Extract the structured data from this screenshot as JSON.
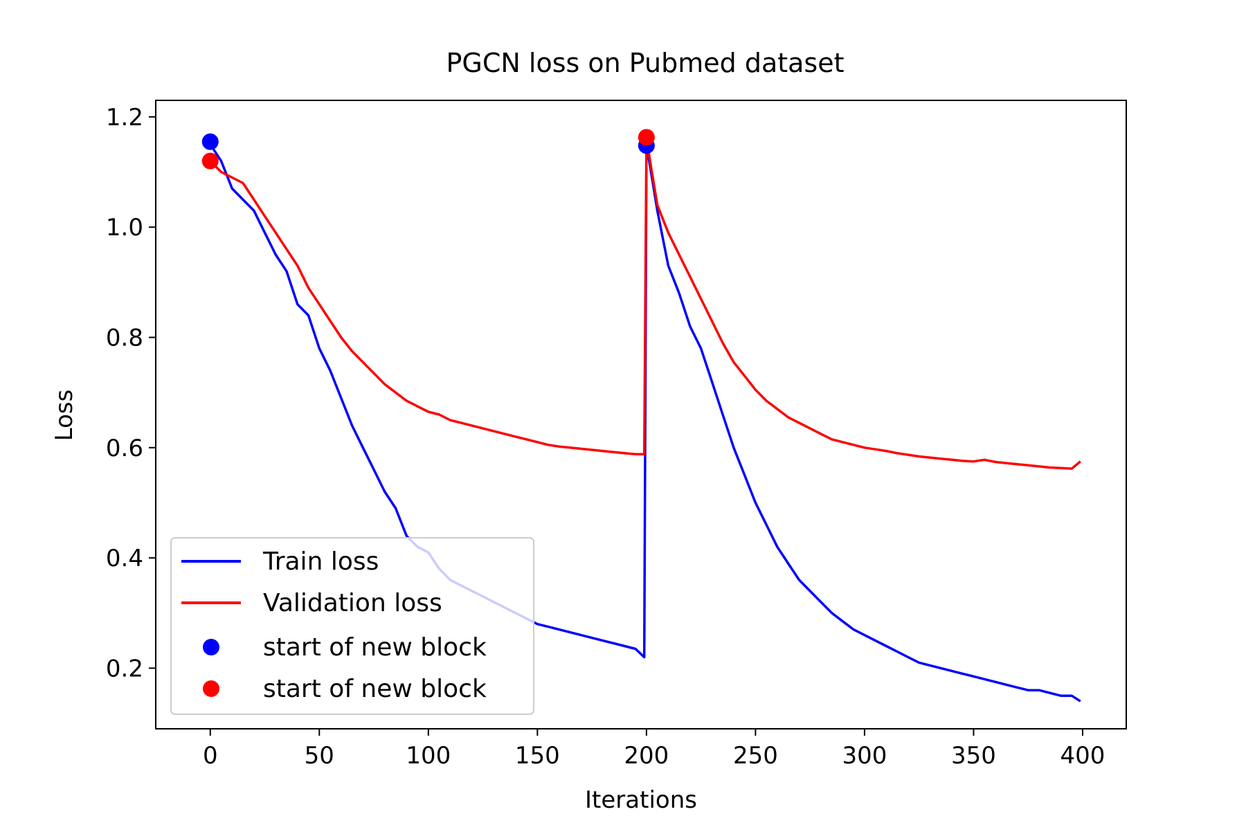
{
  "chart_data": {
    "type": "line",
    "title": "PGCN loss on Pubmed dataset",
    "xlabel": "Iterations",
    "ylabel": "Loss",
    "xlim": [
      -25,
      420
    ],
    "ylim": [
      0.09,
      1.23
    ],
    "x_ticks": [
      0,
      50,
      100,
      150,
      200,
      250,
      300,
      350,
      400
    ],
    "y_ticks": [
      0.2,
      0.4,
      0.6,
      0.8,
      1.0,
      1.2
    ],
    "grid": false,
    "legend_position": "lower-left",
    "series": [
      {
        "name": "Train loss",
        "kind": "line",
        "color": "#0000ff",
        "x": [
          0,
          5,
          10,
          15,
          20,
          25,
          30,
          35,
          40,
          45,
          50,
          55,
          60,
          65,
          70,
          75,
          80,
          85,
          90,
          95,
          100,
          105,
          110,
          115,
          120,
          125,
          130,
          135,
          140,
          145,
          150,
          155,
          160,
          165,
          170,
          175,
          180,
          185,
          190,
          195,
          199,
          200,
          205,
          210,
          215,
          220,
          225,
          230,
          235,
          240,
          245,
          250,
          255,
          260,
          265,
          270,
          275,
          280,
          285,
          290,
          295,
          300,
          305,
          310,
          315,
          320,
          325,
          330,
          335,
          340,
          345,
          350,
          355,
          360,
          365,
          370,
          375,
          380,
          385,
          390,
          395,
          399
        ],
        "y": [
          1.15,
          1.12,
          1.07,
          1.05,
          1.03,
          0.99,
          0.95,
          0.92,
          0.86,
          0.84,
          0.78,
          0.74,
          0.69,
          0.64,
          0.6,
          0.56,
          0.52,
          0.49,
          0.44,
          0.42,
          0.41,
          0.38,
          0.36,
          0.35,
          0.34,
          0.33,
          0.32,
          0.31,
          0.3,
          0.29,
          0.28,
          0.275,
          0.27,
          0.265,
          0.26,
          0.255,
          0.25,
          0.245,
          0.24,
          0.235,
          0.22,
          1.15,
          1.03,
          0.93,
          0.88,
          0.82,
          0.78,
          0.72,
          0.66,
          0.6,
          0.55,
          0.5,
          0.46,
          0.42,
          0.39,
          0.36,
          0.34,
          0.32,
          0.3,
          0.285,
          0.27,
          0.26,
          0.25,
          0.24,
          0.23,
          0.22,
          0.21,
          0.205,
          0.2,
          0.195,
          0.19,
          0.185,
          0.18,
          0.175,
          0.17,
          0.165,
          0.16,
          0.16,
          0.155,
          0.15,
          0.15,
          0.14
        ]
      },
      {
        "name": "Validation loss",
        "kind": "line",
        "color": "#ff0000",
        "x": [
          0,
          5,
          10,
          15,
          20,
          25,
          30,
          35,
          40,
          45,
          50,
          55,
          60,
          65,
          70,
          75,
          80,
          85,
          90,
          95,
          100,
          105,
          110,
          115,
          120,
          125,
          130,
          135,
          140,
          145,
          150,
          155,
          160,
          165,
          170,
          175,
          180,
          185,
          190,
          195,
          199,
          200,
          205,
          210,
          215,
          220,
          225,
          230,
          235,
          240,
          245,
          250,
          255,
          260,
          265,
          270,
          275,
          280,
          285,
          290,
          295,
          300,
          305,
          310,
          315,
          320,
          325,
          330,
          335,
          340,
          345,
          350,
          355,
          360,
          365,
          370,
          375,
          380,
          385,
          390,
          395,
          399
        ],
        "y": [
          1.12,
          1.1,
          1.09,
          1.08,
          1.05,
          1.02,
          0.99,
          0.96,
          0.93,
          0.89,
          0.86,
          0.83,
          0.8,
          0.775,
          0.755,
          0.735,
          0.715,
          0.7,
          0.685,
          0.675,
          0.665,
          0.66,
          0.65,
          0.645,
          0.64,
          0.635,
          0.63,
          0.625,
          0.62,
          0.615,
          0.61,
          0.605,
          0.602,
          0.6,
          0.598,
          0.596,
          0.594,
          0.592,
          0.59,
          0.588,
          0.588,
          1.16,
          1.04,
          0.99,
          0.95,
          0.91,
          0.87,
          0.83,
          0.79,
          0.755,
          0.73,
          0.705,
          0.685,
          0.67,
          0.655,
          0.645,
          0.635,
          0.625,
          0.615,
          0.61,
          0.605,
          0.6,
          0.597,
          0.594,
          0.59,
          0.587,
          0.584,
          0.582,
          0.58,
          0.578,
          0.576,
          0.575,
          0.578,
          0.574,
          0.572,
          0.57,
          0.568,
          0.566,
          0.564,
          0.563,
          0.562,
          0.575
        ]
      },
      {
        "name": "start of new block",
        "kind": "scatter",
        "color": "#0000ff",
        "x": [
          0,
          200
        ],
        "y": [
          1.155,
          1.148
        ]
      },
      {
        "name": "start of new block",
        "kind": "scatter",
        "color": "#ff0000",
        "x": [
          0,
          200
        ],
        "y": [
          1.12,
          1.163
        ]
      }
    ]
  }
}
